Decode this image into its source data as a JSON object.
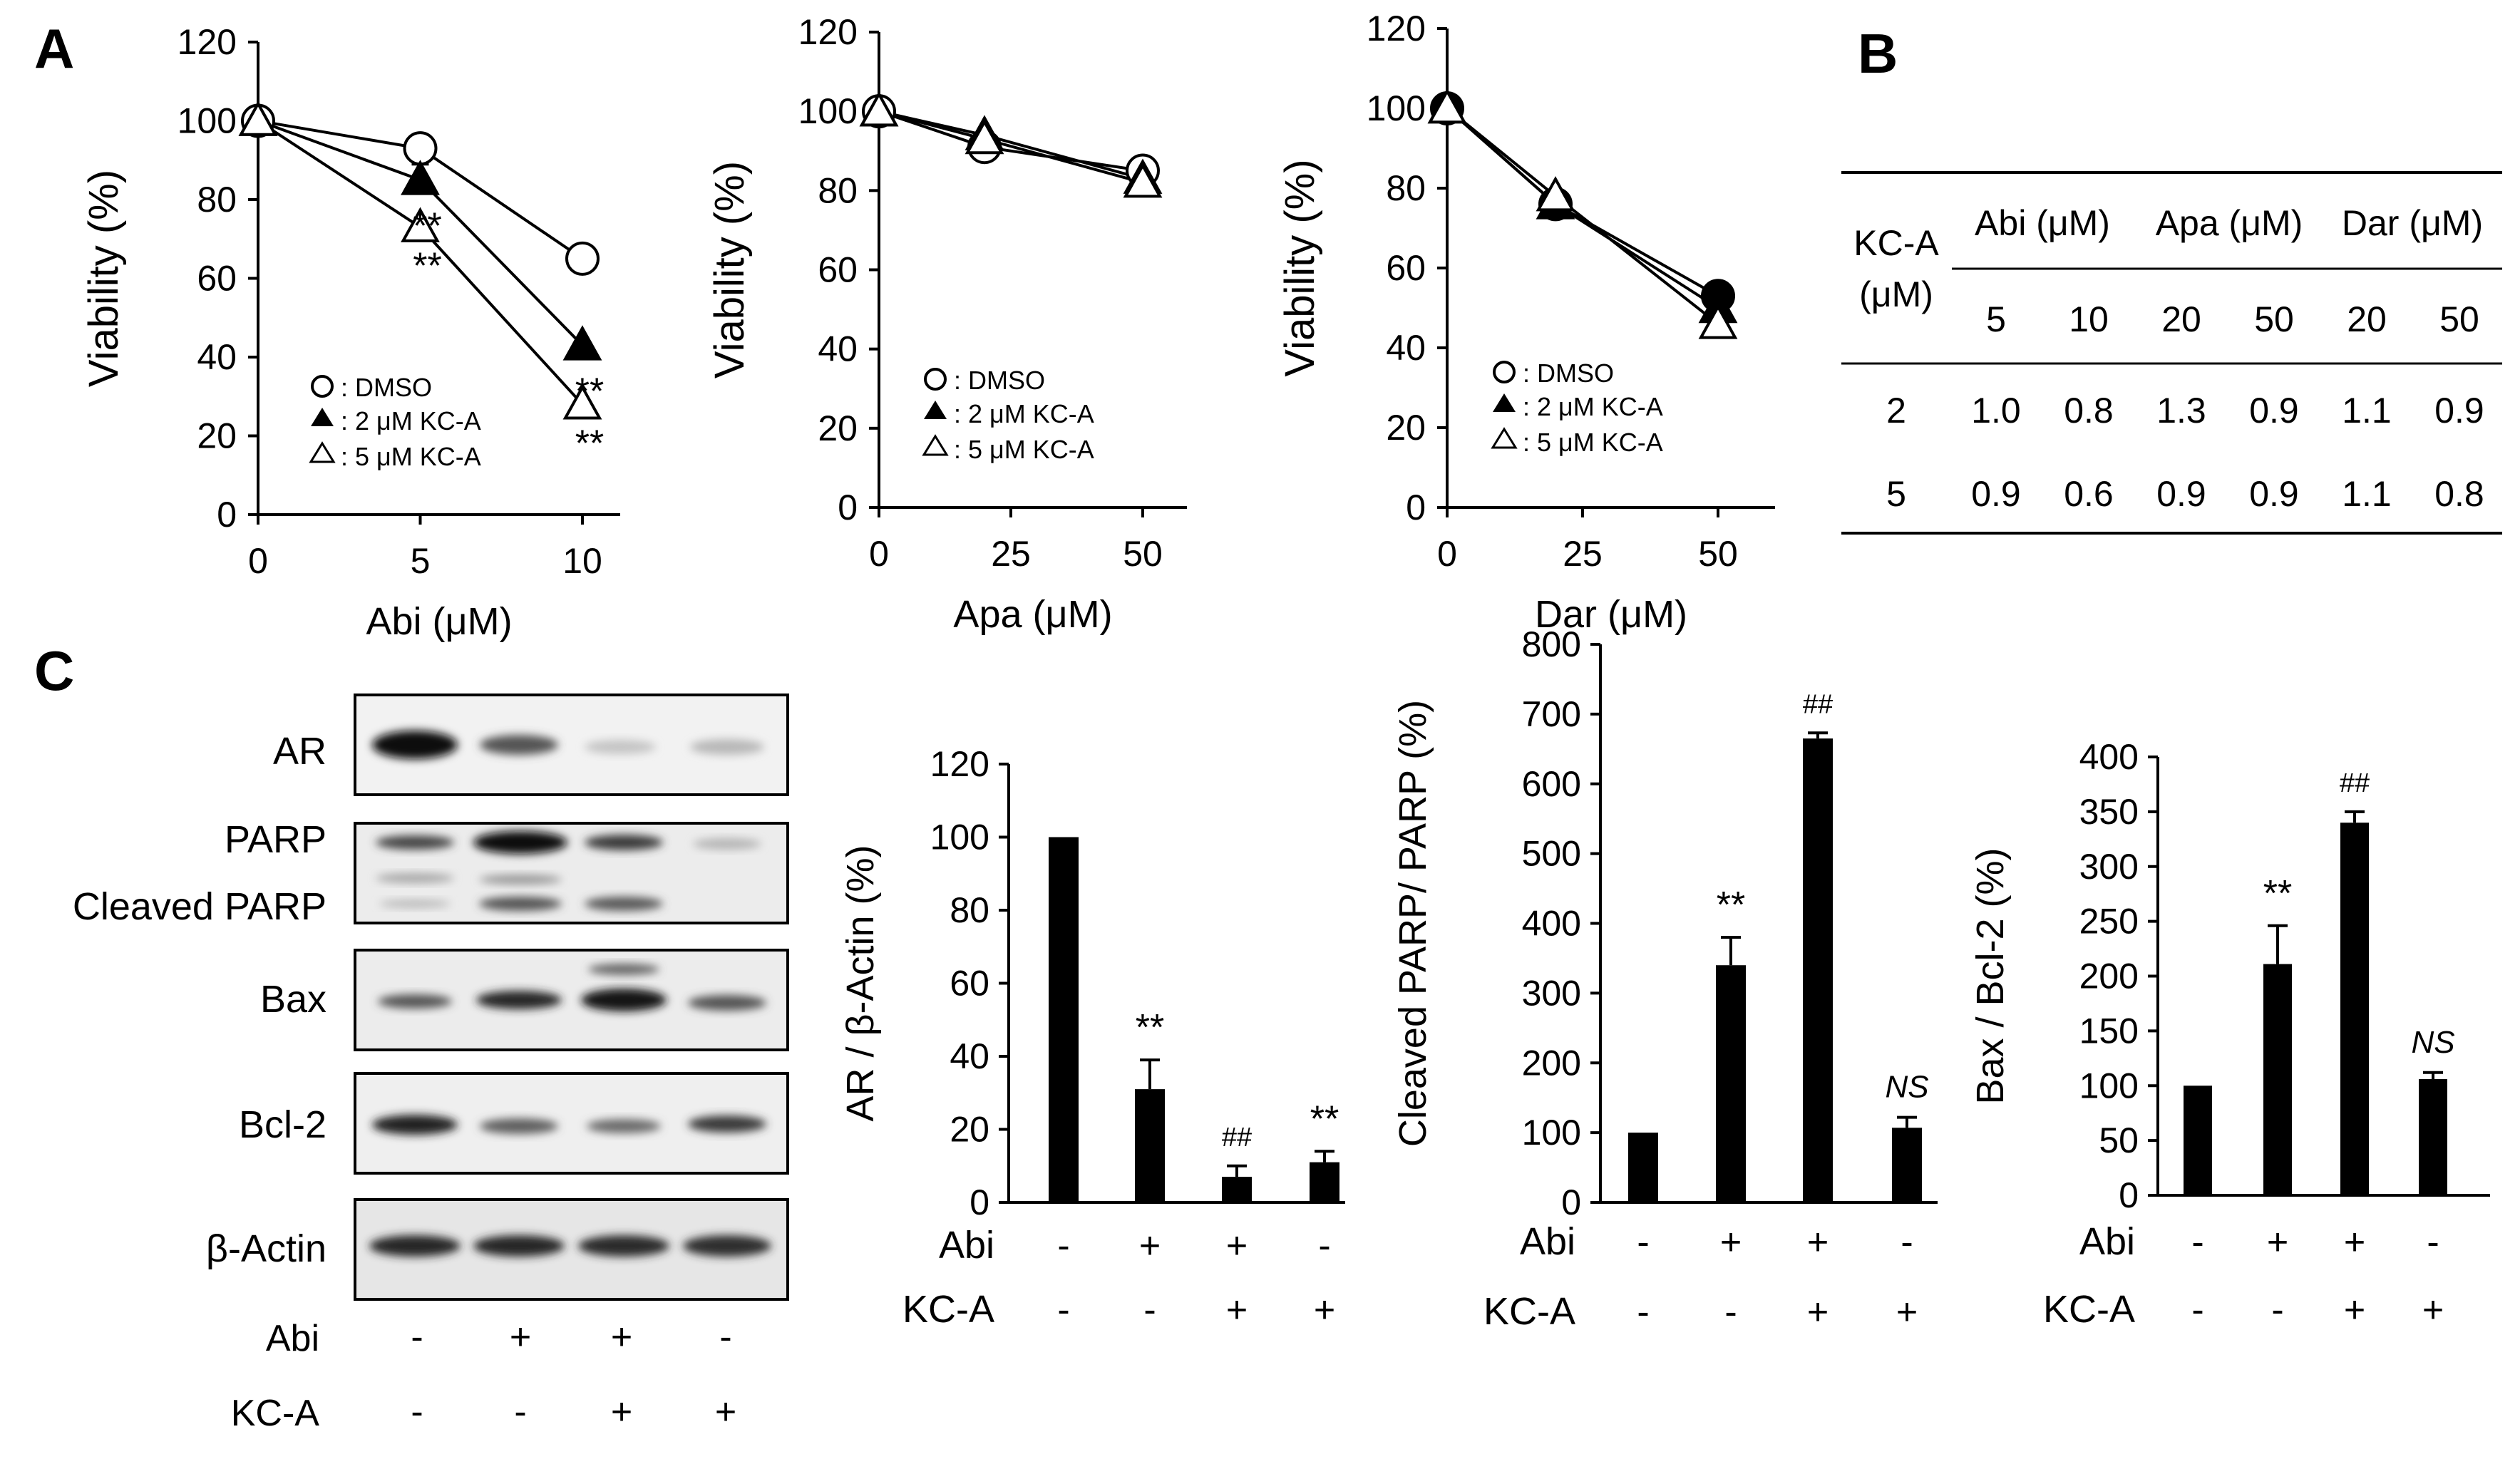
{
  "panel_labels": {
    "a": "A",
    "b": "B",
    "c": "C"
  },
  "legend": {
    "dmso": ": DMSO",
    "kca2": ": 2 μM KC-A",
    "kca5": ": 5 μM KC-A"
  },
  "table": {
    "header_kca": "KC-A",
    "header_kca_unit": "(μM)",
    "groups": [
      "Abi (μM)",
      "Apa (μM)",
      "Dar (μM)"
    ],
    "concs": [
      "5",
      "10",
      "20",
      "50",
      "20",
      "50"
    ],
    "rows": [
      {
        "kca": "2",
        "values": [
          "1.0",
          "0.8",
          "1.3",
          "0.9",
          "1.1",
          "0.9"
        ]
      },
      {
        "kca": "5",
        "values": [
          "0.9",
          "0.6",
          "0.9",
          "0.9",
          "1.1",
          "0.8"
        ]
      }
    ]
  },
  "blot": {
    "labels": [
      "AR",
      "PARP",
      "Cleaved PARP",
      "Bax",
      "Bcl-2",
      "β-Actin"
    ],
    "abi_label": "Abi",
    "kca_label": "KC-A",
    "abi_signs": [
      "-",
      "+",
      "+",
      "-"
    ],
    "kca_signs": [
      "-",
      "-",
      "+",
      "+"
    ]
  },
  "chart_data": [
    {
      "type": "line",
      "xlabel": "Abi (μM)",
      "ylabel": "Viability (%)",
      "x": [
        0,
        5,
        10
      ],
      "x_ticks": [
        "0",
        "5",
        "10"
      ],
      "y_ticks": [
        "0",
        "20",
        "40",
        "60",
        "80",
        "100",
        "120"
      ],
      "ylim": [
        0,
        120
      ],
      "series": [
        {
          "name": "DMSO",
          "marker": "open-circle",
          "values": [
            100,
            93,
            65
          ],
          "errors": [
            0,
            0,
            0
          ],
          "annotations": [
            "",
            "",
            ""
          ]
        },
        {
          "name": "2 μM KC-A",
          "marker": "filled-triangle",
          "values": [
            100,
            85,
            43
          ],
          "errors": [
            0,
            4,
            0
          ],
          "annotations": [
            "",
            "**",
            "**"
          ]
        },
        {
          "name": "5 μM KC-A",
          "marker": "open-triangle",
          "values": [
            100,
            73,
            28
          ],
          "errors": [
            0,
            0,
            0
          ],
          "annotations": [
            "",
            "**",
            "**"
          ]
        }
      ]
    },
    {
      "type": "line",
      "xlabel": "Apa (μM)",
      "ylabel": "Viability (%)",
      "x": [
        0,
        20,
        50
      ],
      "x_ticks": [
        "0",
        "25",
        "50"
      ],
      "y_ticks": [
        "0",
        "20",
        "40",
        "60",
        "80",
        "100",
        "120"
      ],
      "ylim": [
        0,
        120
      ],
      "series": [
        {
          "name": "DMSO",
          "marker": "open-circle",
          "values": [
            100,
            91,
            85
          ],
          "errors": [
            0,
            0,
            0
          ],
          "annotations": [
            "",
            "",
            ""
          ]
        },
        {
          "name": "2 μM KC-A",
          "marker": "filled-triangle",
          "values": [
            100,
            94,
            83
          ],
          "errors": [
            0,
            0,
            0
          ],
          "annotations": [
            "",
            "",
            ""
          ]
        },
        {
          "name": "5 μM KC-A",
          "marker": "open-triangle",
          "values": [
            100,
            93,
            82
          ],
          "errors": [
            0,
            0,
            0
          ],
          "annotations": [
            "",
            "",
            ""
          ]
        }
      ]
    },
    {
      "type": "line",
      "xlabel": "Dar (μM)",
      "ylabel": "Viability (%)",
      "x": [
        0,
        20,
        50
      ],
      "x_ticks": [
        "0",
        "25",
        "50"
      ],
      "y_ticks": [
        "0",
        "20",
        "40",
        "60",
        "80",
        "100",
        "120"
      ],
      "ylim": [
        0,
        120
      ],
      "series": [
        {
          "name": "DMSO",
          "marker": "filled-circle",
          "values": [
            100,
            76,
            53
          ],
          "errors": [
            0,
            0,
            0
          ],
          "annotations": [
            "",
            "",
            ""
          ]
        },
        {
          "name": "2 μM KC-A",
          "marker": "filled-triangle",
          "values": [
            100,
            76,
            50
          ],
          "errors": [
            0,
            0,
            0
          ],
          "annotations": [
            "",
            "",
            ""
          ]
        },
        {
          "name": "5 μM KC-A",
          "marker": "open-triangle",
          "values": [
            100,
            78,
            46
          ],
          "errors": [
            0,
            0,
            0
          ],
          "annotations": [
            "",
            "",
            ""
          ]
        }
      ]
    },
    {
      "type": "bar",
      "ylabel": "AR / β-Actin (%)",
      "y_ticks": [
        "0",
        "20",
        "40",
        "60",
        "80",
        "100",
        "120"
      ],
      "ylim": [
        0,
        120
      ],
      "values": [
        100,
        31,
        7,
        11
      ],
      "errors": [
        0,
        8,
        3,
        3
      ],
      "annotations": [
        "",
        "**",
        "##",
        "**"
      ],
      "abi": [
        "-",
        "+",
        "+",
        "-"
      ],
      "kca": [
        "-",
        "-",
        "+",
        "+"
      ],
      "row_labels": [
        "Abi",
        "KC-A"
      ]
    },
    {
      "type": "bar",
      "ylabel": "Cleaved PARP/ PARP (%)",
      "y_ticks": [
        "0",
        "100",
        "200",
        "300",
        "400",
        "500",
        "600",
        "700",
        "800"
      ],
      "ylim": [
        0,
        800
      ],
      "values": [
        100,
        340,
        665,
        107
      ],
      "errors": [
        0,
        40,
        8,
        15
      ],
      "annotations": [
        "",
        "**",
        "##",
        "NS"
      ],
      "abi": [
        "-",
        "+",
        "+",
        "-"
      ],
      "kca": [
        "-",
        "-",
        "+",
        "+"
      ],
      "row_labels": [
        "Abi",
        "KC-A"
      ]
    },
    {
      "type": "bar",
      "ylabel": "Bax / Bcl-2 (%)",
      "y_ticks": [
        "0",
        "50",
        "100",
        "150",
        "200",
        "250",
        "300",
        "350",
        "400"
      ],
      "ylim": [
        0,
        400
      ],
      "values": [
        100,
        211,
        340,
        106
      ],
      "errors": [
        0,
        35,
        10,
        6
      ],
      "annotations": [
        "",
        "**",
        "##",
        "NS"
      ],
      "abi": [
        "-",
        "+",
        "+",
        "-"
      ],
      "kca": [
        "-",
        "-",
        "+",
        "+"
      ],
      "row_labels": [
        "Abi",
        "KC-A"
      ]
    }
  ]
}
